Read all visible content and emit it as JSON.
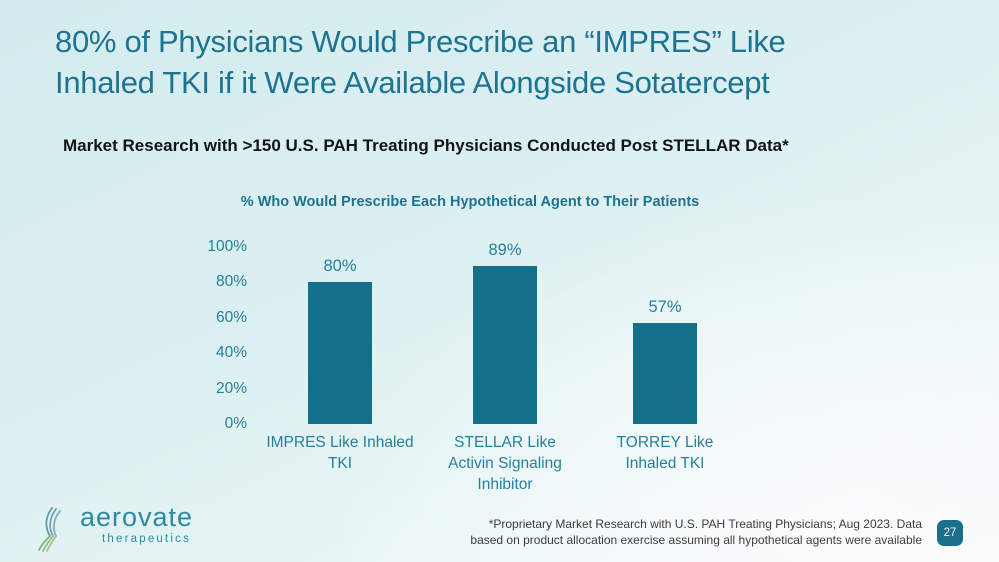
{
  "slide": {
    "title": "80% of Physicians Would Prescribe an “IMPRES” Like\nInhaled TKI if it Were Available Alongside Sotatercept",
    "subtitle": "Market Research with >150 U.S. PAH Treating Physicians Conducted Post STELLAR Data*",
    "footnote": "*Proprietary Market Research with U.S. PAH Treating Physicians; Aug 2023. Data\nbased on product allocation exercise assuming  all hypothetical agents were available",
    "page_number": "27"
  },
  "logo": {
    "name": "aerovate",
    "tagline": "therapeutics"
  },
  "chart_data": {
    "type": "bar",
    "title": "% Who Would Prescribe Each Hypothetical Agent to Their Patients",
    "categories": [
      "IMPRES Like Inhaled\nTKI",
      "STELLAR Like\nActivin Signaling\nInhibitor",
      "TORREY Like\nInhaled TKI"
    ],
    "values": [
      80,
      89,
      57
    ],
    "value_labels": [
      "80%",
      "89%",
      "57%"
    ],
    "y_ticks": [
      {
        "label": "100%",
        "value": 100
      },
      {
        "label": "80%",
        "value": 80
      },
      {
        "label": "60%",
        "value": 60
      },
      {
        "label": "40%",
        "value": 40
      },
      {
        "label": "20%",
        "value": 20
      },
      {
        "label": "0%",
        "value": 0
      }
    ],
    "ylim": [
      0,
      100
    ],
    "grid": false,
    "legend": null,
    "xlabel": "",
    "ylabel": ""
  },
  "colors": {
    "bar": "#146f88",
    "title_teal": "#1d7390",
    "axis_label_teal": "#24809c",
    "badge_teal": "#1b6f88",
    "logo_teal": "#2a8aa2",
    "logo_green": "#86b37a",
    "background_top": "#d4ecef",
    "background_bottom": "#f6fafa"
  }
}
